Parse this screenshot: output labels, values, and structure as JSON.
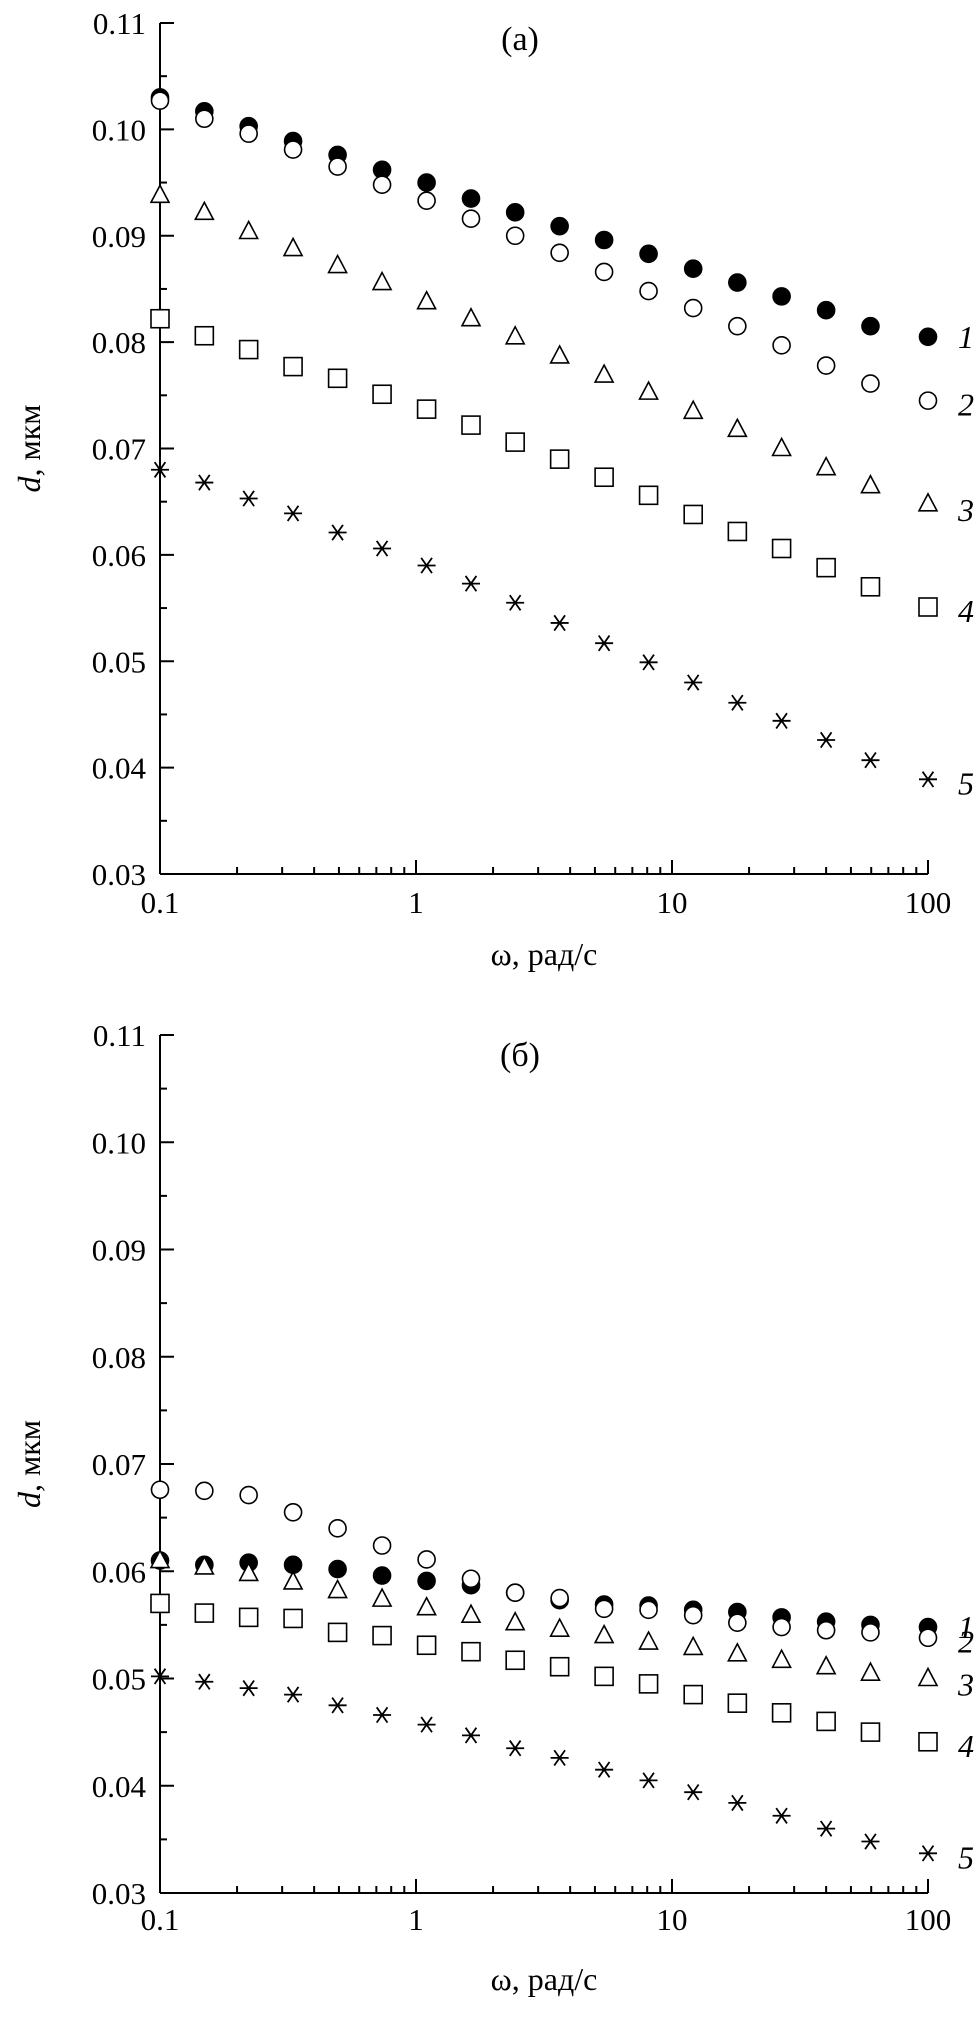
{
  "chart_data": [
    {
      "type": "scatter",
      "panel_label": "(а)",
      "xlabel": "ω, рад/с",
      "ylabel_symbol": "d",
      "ylabel_unit": ", мкм",
      "xscale": "log",
      "xlim": [
        0.1,
        100
      ],
      "ylim": [
        0.03,
        0.11
      ],
      "xticks": [
        0.1,
        1,
        10,
        100
      ],
      "xtick_labels": [
        "0.1",
        "1",
        "10",
        "100"
      ],
      "yticks": [
        0.03,
        0.04,
        0.05,
        0.06,
        0.07,
        0.08,
        0.09,
        0.1,
        0.11
      ],
      "ytick_labels": [
        "0.03",
        "0.04",
        "0.05",
        "0.06",
        "0.07",
        "0.08",
        "0.09",
        "0.10",
        "0.11"
      ],
      "grid": false,
      "x": [
        0.1,
        0.149,
        0.222,
        0.331,
        0.494,
        0.737,
        1.1,
        1.64,
        2.44,
        3.64,
        5.43,
        8.1,
        12.1,
        18,
        26.8,
        40,
        59.6,
        100
      ],
      "series": [
        {
          "name": "1",
          "marker": "filled-circle",
          "values": [
            0.103,
            0.1017,
            0.1003,
            0.0989,
            0.0976,
            0.0962,
            0.095,
            0.0935,
            0.0922,
            0.0909,
            0.0896,
            0.0883,
            0.0869,
            0.0856,
            0.0843,
            0.083,
            0.0815,
            0.0805
          ]
        },
        {
          "name": "2",
          "marker": "open-circle",
          "values": [
            0.1027,
            0.101,
            0.0996,
            0.0981,
            0.0965,
            0.0948,
            0.0933,
            0.0916,
            0.09,
            0.0884,
            0.0866,
            0.0848,
            0.0832,
            0.0815,
            0.0797,
            0.0778,
            0.0761,
            0.0745
          ]
        },
        {
          "name": "3",
          "marker": "open-triangle",
          "values": [
            0.0938,
            0.0922,
            0.0904,
            0.0888,
            0.0872,
            0.0856,
            0.0838,
            0.0822,
            0.0805,
            0.0787,
            0.0769,
            0.0753,
            0.0735,
            0.0718,
            0.07,
            0.0682,
            0.0665,
            0.0648
          ]
        },
        {
          "name": "4",
          "marker": "open-square",
          "values": [
            0.0822,
            0.0806,
            0.0793,
            0.0777,
            0.0766,
            0.0751,
            0.0737,
            0.0722,
            0.0706,
            0.069,
            0.0673,
            0.0656,
            0.0638,
            0.0622,
            0.0606,
            0.0588,
            0.057,
            0.0551
          ]
        },
        {
          "name": "5",
          "marker": "asterisk",
          "values": [
            0.068,
            0.0668,
            0.0653,
            0.0639,
            0.0621,
            0.0606,
            0.059,
            0.0573,
            0.0555,
            0.0536,
            0.0517,
            0.0499,
            0.048,
            0.0461,
            0.0444,
            0.0426,
            0.0407,
            0.0389
          ]
        }
      ]
    },
    {
      "type": "scatter",
      "panel_label": "(б)",
      "xlabel": "ω, рад/с",
      "ylabel_symbol": "d",
      "ylabel_unit": ", мкм",
      "xscale": "log",
      "xlim": [
        0.1,
        100
      ],
      "ylim": [
        0.03,
        0.11
      ],
      "xticks": [
        0.1,
        1,
        10,
        100
      ],
      "xtick_labels": [
        "0.1",
        "1",
        "10",
        "100"
      ],
      "yticks": [
        0.03,
        0.04,
        0.05,
        0.06,
        0.07,
        0.08,
        0.09,
        0.1,
        0.11
      ],
      "ytick_labels": [
        "0.03",
        "0.04",
        "0.05",
        "0.06",
        "0.07",
        "0.08",
        "0.09",
        "0.10",
        "0.11"
      ],
      "grid": false,
      "x": [
        0.1,
        0.149,
        0.222,
        0.331,
        0.494,
        0.737,
        1.1,
        1.64,
        2.44,
        3.64,
        5.43,
        8.1,
        12.1,
        18,
        26.8,
        40,
        59.6,
        100
      ],
      "series": [
        {
          "name": "1",
          "marker": "filled-circle",
          "values": [
            0.061,
            0.0606,
            0.0608,
            0.0606,
            0.0602,
            0.0596,
            0.0591,
            0.0587,
            0.058,
            0.0573,
            0.0569,
            0.0568,
            0.0564,
            0.0562,
            0.0557,
            0.0553,
            0.055,
            0.0548
          ]
        },
        {
          "name": "2",
          "marker": "open-circle",
          "values": [
            0.0676,
            0.0675,
            0.0671,
            0.0655,
            0.064,
            0.0624,
            0.0611,
            0.0593,
            0.058,
            0.0575,
            0.0565,
            0.0564,
            0.0559,
            0.0552,
            0.0548,
            0.0545,
            0.0543,
            0.0538
          ]
        },
        {
          "name": "3",
          "marker": "open-triangle",
          "values": [
            0.061,
            0.0604,
            0.0598,
            0.059,
            0.0582,
            0.0574,
            0.0566,
            0.0559,
            0.0552,
            0.0546,
            0.054,
            0.0534,
            0.0529,
            0.0523,
            0.0517,
            0.0511,
            0.0505,
            0.05
          ]
        },
        {
          "name": "4",
          "marker": "open-square",
          "values": [
            0.057,
            0.0561,
            0.0557,
            0.0556,
            0.0543,
            0.054,
            0.0531,
            0.0525,
            0.0517,
            0.0511,
            0.0502,
            0.0495,
            0.0485,
            0.0477,
            0.0468,
            0.046,
            0.045,
            0.0441
          ]
        },
        {
          "name": "5",
          "marker": "asterisk",
          "values": [
            0.0502,
            0.0497,
            0.0491,
            0.0485,
            0.0475,
            0.0466,
            0.0457,
            0.0447,
            0.0435,
            0.0426,
            0.0415,
            0.0405,
            0.0394,
            0.0384,
            0.0372,
            0.036,
            0.0348,
            0.0337
          ]
        }
      ]
    }
  ]
}
